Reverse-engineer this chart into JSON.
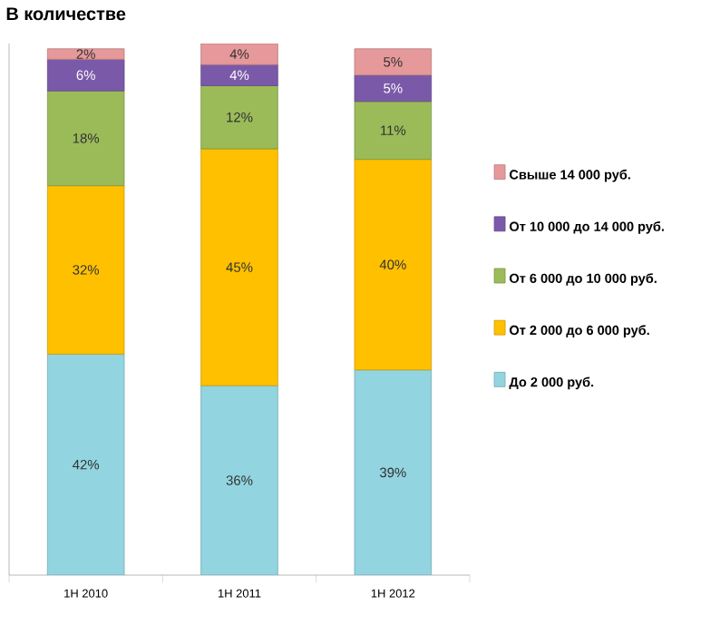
{
  "chart_data": {
    "type": "bar",
    "stacked": true,
    "title": "В количестве",
    "categories": [
      "1H 2010",
      "1H 2011",
      "1H 2012"
    ],
    "series": [
      {
        "name": "До 2 000 руб.",
        "color": "#92d4e0",
        "values": [
          42,
          36,
          39
        ],
        "value_labels": [
          "42%",
          "36%",
          "39%"
        ]
      },
      {
        "name": "От 2 000 до 6 000 руб.",
        "color": "#ffc000",
        "values": [
          32,
          45,
          40
        ],
        "value_labels": [
          "32%",
          "45%",
          "40%"
        ]
      },
      {
        "name": "От 6 000 до 10 000 руб.",
        "color": "#9bbb59",
        "values": [
          18,
          12,
          11
        ],
        "value_labels": [
          "18%",
          "12%",
          "11%"
        ]
      },
      {
        "name": "От 10 000 до 14 000 руб.",
        "color": "#7a5aa8",
        "values": [
          6,
          4,
          5
        ],
        "value_labels": [
          "6%",
          "4%",
          "5%"
        ]
      },
      {
        "name": "Свыше 14 000 руб.",
        "color": "#e6999a",
        "values": [
          2,
          4,
          5
        ],
        "value_labels": [
          "2%",
          "4%",
          "5%"
        ]
      }
    ],
    "legend": "right",
    "tick_labels": "x"
  }
}
